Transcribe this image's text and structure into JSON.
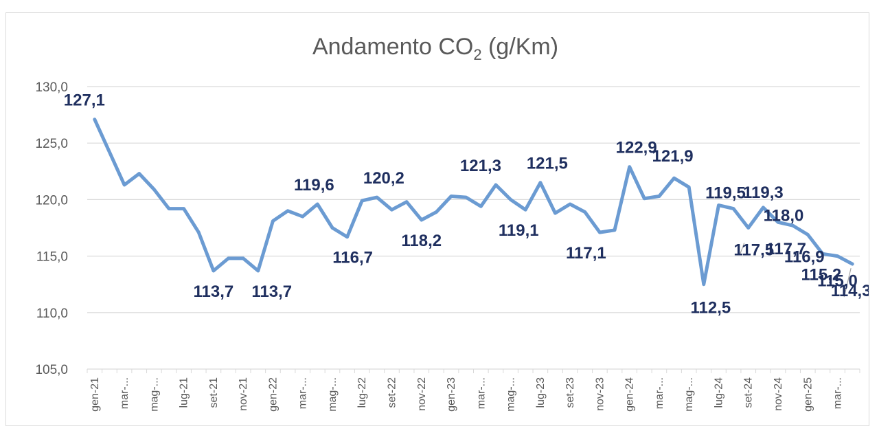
{
  "chart_data": {
    "type": "line",
    "title": "Andamento CO",
    "title_subscript": "2",
    "title_suffix": " (g/Km)",
    "xlabel": "",
    "ylabel": "",
    "ylim": [
      105,
      130
    ],
    "yticks": [
      "105,0",
      "110,0",
      "115,0",
      "120,0",
      "125,0",
      "130,0"
    ],
    "ytick_values": [
      105,
      110,
      115,
      120,
      125,
      130
    ],
    "grid": true,
    "legend": "none",
    "series_color": "#6b9bd2",
    "label_color": "#1f2f5f",
    "categories": [
      "gen-21",
      "feb-21",
      "mar-21",
      "apr-21",
      "mag-21",
      "giu-21",
      "lug-21",
      "ago-21",
      "set-21",
      "ott-21",
      "nov-21",
      "dic-21",
      "gen-22",
      "feb-22",
      "mar-22",
      "apr-22",
      "mag-22",
      "giu-22",
      "lug-22",
      "ago-22",
      "set-22",
      "ott-22",
      "nov-22",
      "dic-22",
      "gen-23",
      "feb-23",
      "mar-23",
      "apr-23",
      "mag-23",
      "giu-23",
      "lug-23",
      "ago-23",
      "set-23",
      "ott-23",
      "nov-23",
      "dic-23",
      "gen-24",
      "feb-24",
      "mar-24",
      "apr-24",
      "mag-24",
      "giu-24",
      "lug-24",
      "ago-24",
      "set-24",
      "ott-24",
      "nov-24",
      "dic-24",
      "gen-25",
      "feb-25",
      "mar-25",
      "apr-25"
    ],
    "tick_labels": [
      {
        "i": 0,
        "text": "gen-21"
      },
      {
        "i": 2,
        "text": "mar-..."
      },
      {
        "i": 4,
        "text": "mag-..."
      },
      {
        "i": 6,
        "text": "lug-21"
      },
      {
        "i": 8,
        "text": "set-21"
      },
      {
        "i": 10,
        "text": "nov-21"
      },
      {
        "i": 12,
        "text": "gen-22"
      },
      {
        "i": 14,
        "text": "mar-..."
      },
      {
        "i": 16,
        "text": "mag-..."
      },
      {
        "i": 18,
        "text": "lug-22"
      },
      {
        "i": 20,
        "text": "set-22"
      },
      {
        "i": 22,
        "text": "nov-22"
      },
      {
        "i": 24,
        "text": "gen-23"
      },
      {
        "i": 26,
        "text": "mar-..."
      },
      {
        "i": 28,
        "text": "mag-..."
      },
      {
        "i": 30,
        "text": "lug-23"
      },
      {
        "i": 32,
        "text": "set-23"
      },
      {
        "i": 34,
        "text": "nov-23"
      },
      {
        "i": 36,
        "text": "gen-24"
      },
      {
        "i": 38,
        "text": "mar-..."
      },
      {
        "i": 40,
        "text": "mag-..."
      },
      {
        "i": 42,
        "text": "lug-24"
      },
      {
        "i": 44,
        "text": "set-24"
      },
      {
        "i": 46,
        "text": "nov-24"
      },
      {
        "i": 48,
        "text": "gen-25"
      },
      {
        "i": 50,
        "text": "mar-..."
      }
    ],
    "values": [
      127.1,
      124.2,
      121.3,
      122.3,
      120.9,
      119.2,
      119.2,
      117.1,
      113.7,
      114.8,
      114.8,
      113.7,
      118.1,
      119.0,
      118.5,
      119.6,
      117.5,
      116.7,
      119.9,
      120.2,
      119.1,
      119.8,
      118.2,
      118.9,
      120.3,
      120.2,
      119.4,
      121.3,
      120.0,
      119.1,
      121.5,
      118.8,
      119.6,
      118.9,
      117.1,
      117.3,
      122.9,
      120.1,
      120.3,
      121.9,
      121.1,
      112.5,
      119.5,
      119.2,
      117.5,
      119.3,
      118.0,
      117.7,
      116.9,
      115.2,
      115.0,
      114.3
    ],
    "data_labels": [
      {
        "i": 0,
        "text": "127,1",
        "pos": "above"
      },
      {
        "i": 8,
        "text": "113,7",
        "pos": "below"
      },
      {
        "i": 11,
        "text": "113,7",
        "pos": "below"
      },
      {
        "i": 15,
        "text": "119,6",
        "pos": "above"
      },
      {
        "i": 17,
        "text": "116,7",
        "pos": "below"
      },
      {
        "i": 19,
        "text": "120,2",
        "pos": "above"
      },
      {
        "i": 22,
        "text": "118,2",
        "pos": "below"
      },
      {
        "i": 27,
        "text": "121,3",
        "pos": "above"
      },
      {
        "i": 29,
        "text": "119,1",
        "pos": "below"
      },
      {
        "i": 30,
        "text": "121,5",
        "pos": "above"
      },
      {
        "i": 34,
        "text": "117,1",
        "pos": "below"
      },
      {
        "i": 36,
        "text": "122,9",
        "pos": "above"
      },
      {
        "i": 39,
        "text": "121,9",
        "pos": "above"
      },
      {
        "i": 41,
        "text": "112,5",
        "pos": "below"
      },
      {
        "i": 42,
        "text": "119,5",
        "pos": "above"
      },
      {
        "i": 44,
        "text": "117,5",
        "pos": "below"
      },
      {
        "i": 45,
        "text": "119,3",
        "pos": "above"
      },
      {
        "i": 46,
        "text": "118,0",
        "pos": "above"
      },
      {
        "i": 47,
        "text": "117,7",
        "pos": "below"
      },
      {
        "i": 48,
        "text": "116,9",
        "pos": "below"
      },
      {
        "i": 49,
        "text": "115,2",
        "pos": "below"
      },
      {
        "i": 50,
        "text": "115,0",
        "pos": "below"
      },
      {
        "i": 51,
        "text": "114,3",
        "pos": "below"
      }
    ]
  }
}
